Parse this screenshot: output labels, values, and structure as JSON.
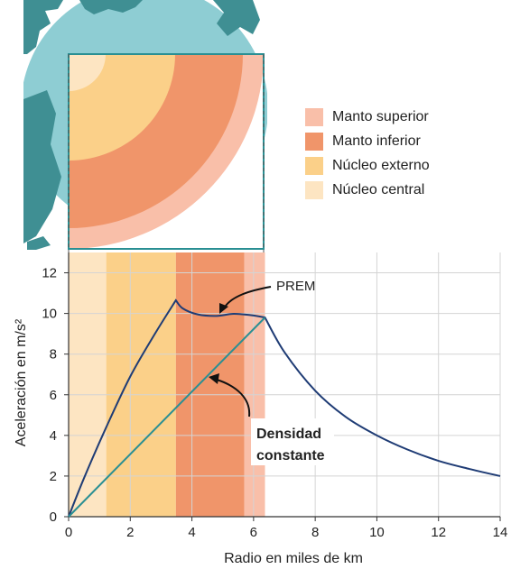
{
  "legend": {
    "items": [
      {
        "label": "Manto superior",
        "color": "#f9bfa9"
      },
      {
        "label": "Manto inferior",
        "color": "#f0956a"
      },
      {
        "label": "Núcleo externo",
        "color": "#fbd089"
      },
      {
        "label": "Núcleo central",
        "color": "#fde5c2"
      }
    ]
  },
  "annotations": {
    "prem": "PREM",
    "constant_line1": "Densidad",
    "constant_line2": "constante"
  },
  "chart_data": {
    "type": "line",
    "title": "",
    "xlabel": "Radio en miles de km",
    "ylabel": "Aceleración en m/s²",
    "xlim": [
      0,
      14
    ],
    "ylim": [
      0,
      13
    ],
    "x_ticks": [
      0,
      2,
      4,
      6,
      8,
      10,
      12,
      14
    ],
    "y_ticks": [
      0,
      2,
      4,
      6,
      8,
      10,
      12
    ],
    "grid": true,
    "layers": [
      {
        "name": "Núcleo central",
        "from": 0,
        "to": 1.22,
        "color": "#fde5c2"
      },
      {
        "name": "Núcleo externo",
        "from": 1.22,
        "to": 3.48,
        "color": "#fbd089"
      },
      {
        "name": "Manto inferior",
        "from": 3.48,
        "to": 5.7,
        "color": "#f0956a"
      },
      {
        "name": "Manto superior",
        "from": 5.7,
        "to": 6.37,
        "color": "#f9bfa9"
      }
    ],
    "series": [
      {
        "name": "PREM",
        "color": "#1f3c75",
        "x": [
          0,
          0.5,
          1.22,
          2.0,
          2.8,
          3.48,
          3.7,
          4.2,
          4.8,
          5.3,
          5.7,
          6.0,
          6.37,
          7.0,
          8.0,
          9.0,
          10.0,
          11.0,
          12.0,
          13.0,
          14.0
        ],
        "y": [
          0,
          1.9,
          4.4,
          6.9,
          9.0,
          10.65,
          10.25,
          9.95,
          9.88,
          9.98,
          9.95,
          9.9,
          9.8,
          8.1,
          6.2,
          4.9,
          4.0,
          3.3,
          2.75,
          2.35,
          2.0
        ]
      },
      {
        "name": "Densidad constante",
        "color": "#2a8f93",
        "x": [
          0,
          6.37
        ],
        "y": [
          0,
          9.8
        ]
      }
    ]
  }
}
